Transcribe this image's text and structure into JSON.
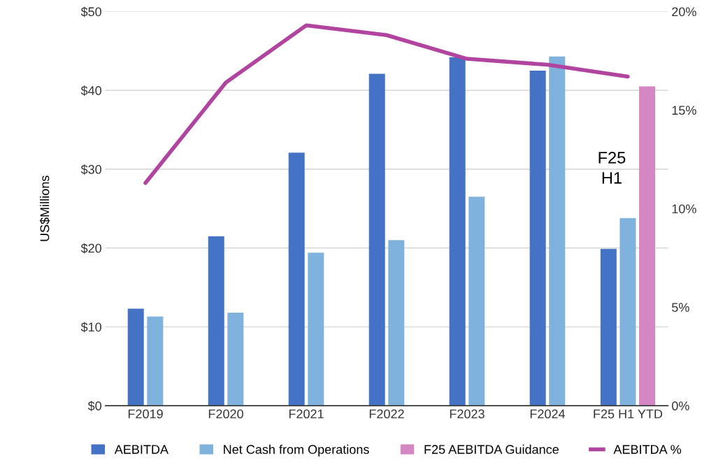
{
  "chart_data": {
    "type": "bar",
    "categories": [
      "F2019",
      "F2020",
      "F2021",
      "F2022",
      "F2023",
      "F2024",
      "F25 H1 YTD"
    ],
    "ylabel": "US$Millions",
    "series": [
      {
        "name": "AEBITDA",
        "color": "#4472c4",
        "values": [
          12.3,
          21.5,
          32.1,
          42.1,
          44.2,
          42.5,
          19.9
        ]
      },
      {
        "name": "Net Cash from Operations",
        "color": "#7fb2dc",
        "values": [
          11.3,
          11.8,
          19.4,
          21.0,
          26.5,
          44.3,
          23.8
        ]
      },
      {
        "name": "F25 AEBITDA Guidance",
        "color": "#d487c2",
        "values": [
          null,
          null,
          null,
          null,
          null,
          null,
          40.5
        ]
      },
      {
        "name": "AEBITDA %",
        "type": "line",
        "axis": "y2",
        "color": "#b0449e",
        "values": [
          11.3,
          16.4,
          19.3,
          18.8,
          17.6,
          17.3,
          16.7
        ]
      }
    ],
    "ylim": [
      0,
      50
    ],
    "yticks": [
      {
        "value": 0,
        "label": "$0"
      },
      {
        "value": 10,
        "label": "$10"
      },
      {
        "value": 20,
        "label": "$20"
      },
      {
        "value": 30,
        "label": "$30"
      },
      {
        "value": 40,
        "label": "$40"
      },
      {
        "value": 50,
        "label": "$50"
      }
    ],
    "y2lim": [
      0,
      20
    ],
    "y2ticks": [
      {
        "value": 0,
        "label": "0%"
      },
      {
        "value": 5,
        "label": "5%"
      },
      {
        "value": 10,
        "label": "10%"
      },
      {
        "value": 15,
        "label": "15%"
      },
      {
        "value": 20,
        "label": "20%"
      }
    ],
    "annotations": [
      "F25\nH1"
    ],
    "grid": "y",
    "legend": "bottom"
  }
}
